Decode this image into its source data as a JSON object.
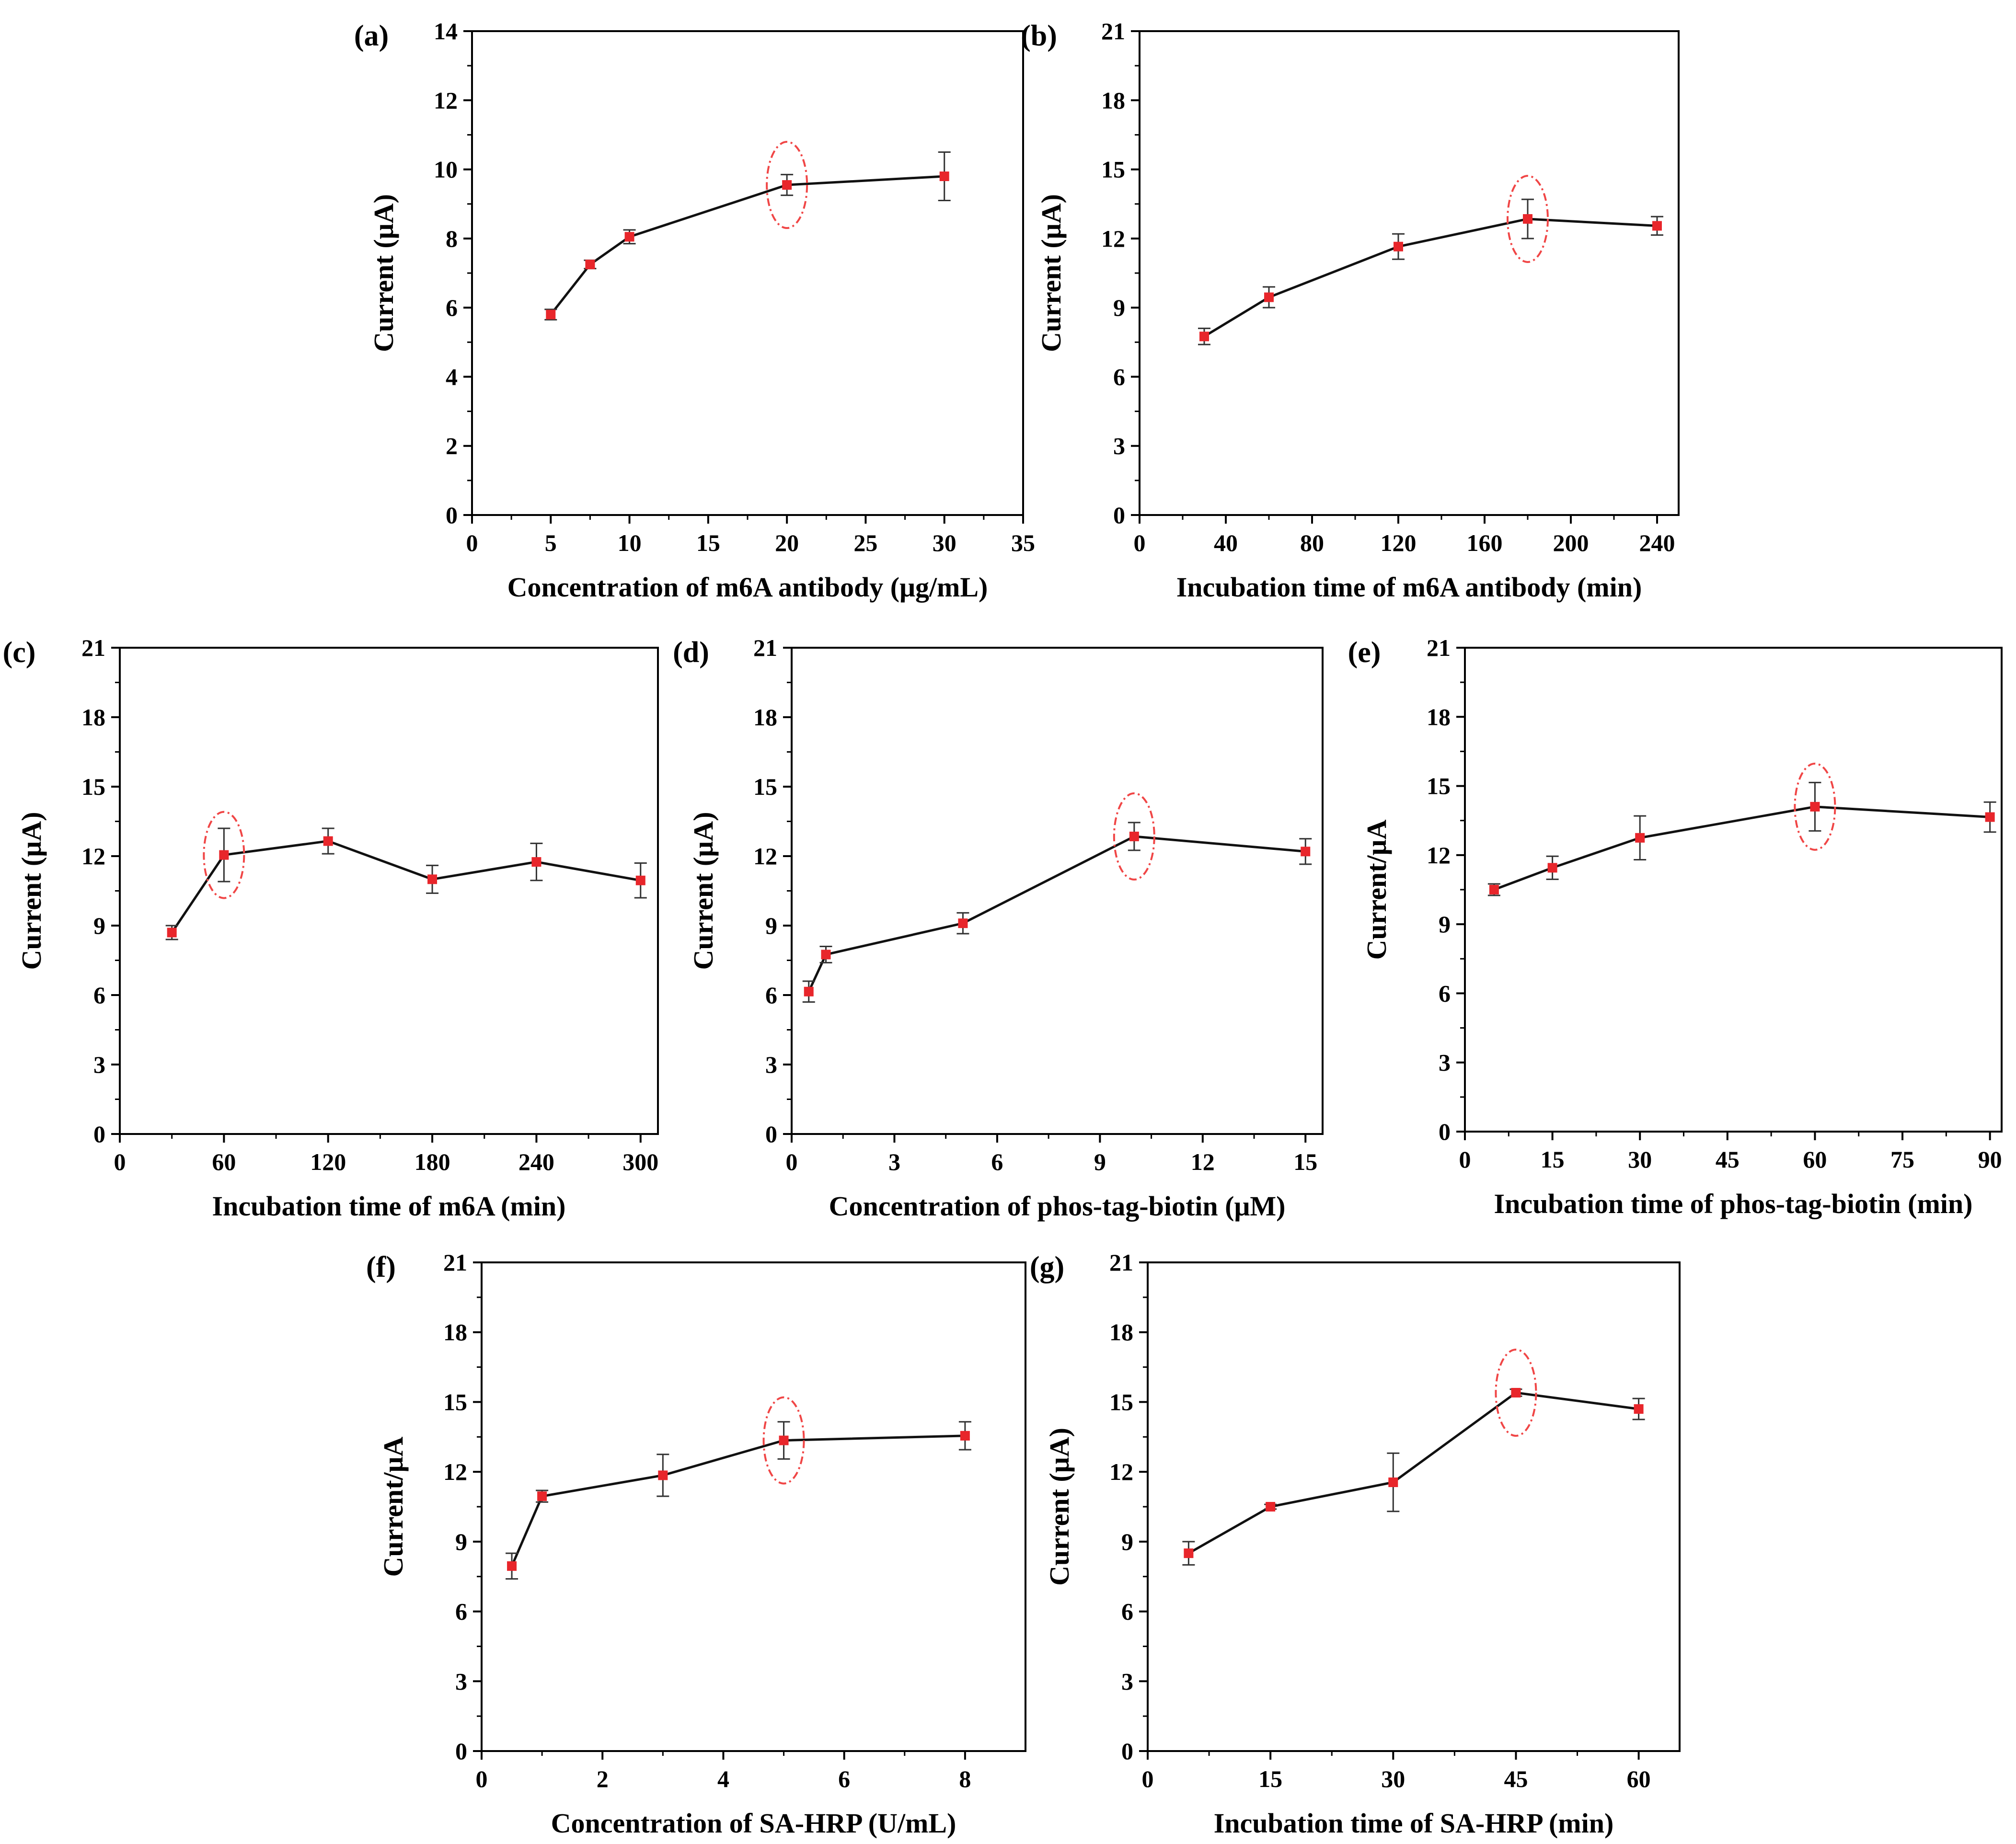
{
  "chart_data": [
    {
      "panel": "(a)",
      "type": "line",
      "xlabel": "Concentration of m6A antibody (μg/mL)",
      "ylabel": "Current (μA)",
      "xlim": [
        0,
        35
      ],
      "ylim": [
        0,
        14
      ],
      "xticks": [
        0,
        5,
        10,
        15,
        20,
        25,
        30,
        35
      ],
      "yticks": [
        0,
        2,
        4,
        6,
        8,
        10,
        12,
        14
      ],
      "x": [
        5,
        7.5,
        10,
        20,
        30
      ],
      "y": [
        5.8,
        7.25,
        8.05,
        9.55,
        9.8
      ],
      "err": [
        0.15,
        0.12,
        0.2,
        0.3,
        0.7
      ],
      "highlight_x": 20
    },
    {
      "panel": "(b)",
      "type": "line",
      "xlabel": "Incubation time of m6A antibody (min)",
      "ylabel": "Current (μA)",
      "xlim": [
        0,
        250
      ],
      "ylim": [
        0,
        21
      ],
      "xticks": [
        0,
        40,
        80,
        120,
        160,
        200,
        240
      ],
      "yticks": [
        0,
        3,
        6,
        9,
        12,
        15,
        18,
        21
      ],
      "x": [
        30,
        60,
        120,
        180,
        240
      ],
      "y": [
        7.75,
        9.45,
        11.65,
        12.85,
        12.55
      ],
      "err": [
        0.35,
        0.45,
        0.55,
        0.85,
        0.4
      ],
      "highlight_x": 180
    },
    {
      "panel": "(c)",
      "type": "line",
      "xlabel": "Incubation time of m6A (min)",
      "ylabel": "Current (μA)",
      "xlim": [
        0,
        310
      ],
      "ylim": [
        0,
        21
      ],
      "xticks": [
        0,
        60,
        120,
        180,
        240,
        300
      ],
      "yticks": [
        0,
        3,
        6,
        9,
        12,
        15,
        18,
        21
      ],
      "x": [
        30,
        60,
        120,
        180,
        240,
        300
      ],
      "y": [
        8.7,
        12.05,
        12.65,
        11.0,
        11.75,
        10.95
      ],
      "err": [
        0.3,
        1.15,
        0.55,
        0.6,
        0.8,
        0.75
      ],
      "highlight_x": 60
    },
    {
      "panel": "(d)",
      "type": "line",
      "xlabel": "Concentration of  phos-tag-biotin (μM)",
      "ylabel": "Current (μA)",
      "xlim": [
        0,
        15.5
      ],
      "ylim": [
        0,
        21
      ],
      "xticks": [
        0,
        3,
        6,
        9,
        12,
        15
      ],
      "yticks": [
        0,
        3,
        6,
        9,
        12,
        15,
        18,
        21
      ],
      "x": [
        0.5,
        1,
        5,
        10,
        15
      ],
      "y": [
        6.15,
        7.75,
        9.1,
        12.85,
        12.2
      ],
      "err": [
        0.45,
        0.35,
        0.45,
        0.6,
        0.55
      ],
      "highlight_x": 10
    },
    {
      "panel": "(e)",
      "type": "line",
      "xlabel": "Incubation time of phos-tag-biotin (min)",
      "ylabel": "Current/μA",
      "xlim": [
        0,
        92
      ],
      "ylim": [
        0,
        21
      ],
      "xticks": [
        0,
        15,
        30,
        45,
        60,
        75,
        90
      ],
      "yticks": [
        0,
        3,
        6,
        9,
        12,
        15,
        18,
        21
      ],
      "x": [
        5,
        15,
        30,
        60,
        90
      ],
      "y": [
        10.5,
        11.45,
        12.75,
        14.1,
        13.65
      ],
      "err": [
        0.25,
        0.5,
        0.95,
        1.05,
        0.65
      ],
      "highlight_x": 60
    },
    {
      "panel": "(f)",
      "type": "line",
      "xlabel": "Concentration of SA-HRP (U/mL)",
      "ylabel": "Current/μA",
      "xlim": [
        0,
        9
      ],
      "ylim": [
        0,
        21
      ],
      "xticks": [
        0,
        2,
        4,
        6,
        8
      ],
      "yticks": [
        0,
        3,
        6,
        9,
        12,
        15,
        18,
        21
      ],
      "x": [
        0.5,
        1,
        3,
        5,
        8
      ],
      "y": [
        7.95,
        10.95,
        11.85,
        13.35,
        13.55
      ],
      "err": [
        0.55,
        0.25,
        0.9,
        0.8,
        0.6
      ],
      "highlight_x": 5
    },
    {
      "panel": "(g)",
      "type": "line",
      "xlabel": "Incubation time of SA-HRP (min)",
      "ylabel": "Current (μA)",
      "xlim": [
        0,
        65
      ],
      "ylim": [
        0,
        21
      ],
      "xticks": [
        0,
        15,
        30,
        45,
        60
      ],
      "yticks": [
        0,
        3,
        6,
        9,
        12,
        15,
        18,
        21
      ],
      "x": [
        5,
        15,
        30,
        45,
        60
      ],
      "y": [
        8.5,
        10.5,
        11.55,
        15.4,
        14.7
      ],
      "err": [
        0.5,
        0.1,
        1.25,
        0.15,
        0.45
      ],
      "highlight_x": 45
    }
  ]
}
